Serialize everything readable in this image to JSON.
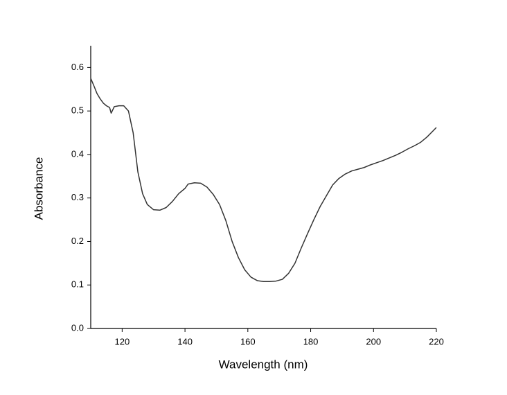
{
  "chart_data": {
    "type": "line",
    "x_label": "Wavelength (nm)",
    "y_label": "Absorbance",
    "x": [
      110,
      111,
      112,
      113,
      114,
      115,
      116,
      116.5,
      117.5,
      119,
      120.5,
      122,
      123.5,
      125,
      126.5,
      128,
      130,
      132,
      134,
      136,
      138,
      140,
      141,
      143,
      145,
      147,
      149,
      151,
      153,
      155,
      157,
      159,
      161,
      163,
      165,
      167,
      169,
      171,
      173,
      175,
      177,
      179,
      181,
      183,
      185,
      187,
      189,
      191,
      193,
      195,
      197,
      199,
      201,
      203,
      205,
      207,
      209,
      211,
      213,
      215,
      217,
      220
    ],
    "series": [
      {
        "color": "#333333",
        "values": [
          0.575,
          0.558,
          0.54,
          0.528,
          0.518,
          0.512,
          0.508,
          0.495,
          0.51,
          0.512,
          0.512,
          0.5,
          0.45,
          0.36,
          0.31,
          0.285,
          0.273,
          0.272,
          0.278,
          0.292,
          0.31,
          0.322,
          0.332,
          0.335,
          0.334,
          0.325,
          0.308,
          0.285,
          0.248,
          0.2,
          0.163,
          0.135,
          0.118,
          0.11,
          0.108,
          0.108,
          0.109,
          0.113,
          0.127,
          0.15,
          0.185,
          0.218,
          0.25,
          0.28,
          0.305,
          0.33,
          0.345,
          0.355,
          0.362,
          0.366,
          0.37,
          0.376,
          0.381,
          0.386,
          0.392,
          0.398,
          0.405,
          0.413,
          0.42,
          0.428,
          0.44,
          0.462
        ]
      }
    ],
    "xlim": [
      110,
      220
    ],
    "xticks": [
      120,
      140,
      160,
      180,
      200,
      220
    ],
    "ylim": [
      0,
      0.65
    ],
    "yticks": [
      {
        "value": 0,
        "label": "0.0"
      },
      0.1,
      0.2,
      0.3,
      0.4,
      0.5,
      0.6
    ],
    "grid": false
  }
}
